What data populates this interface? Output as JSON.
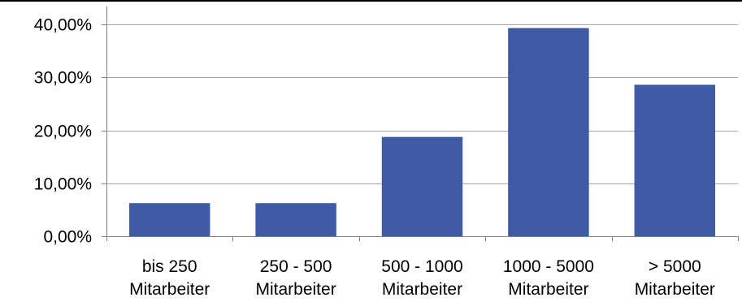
{
  "chart_data": {
    "type": "bar",
    "categories": [
      [
        "bis 250",
        "Mitarbeiter"
      ],
      [
        "250 - 500",
        "Mitarbeiter"
      ],
      [
        "500 - 1000",
        "Mitarbeiter"
      ],
      [
        "1000 - 5000",
        "Mitarbeiter"
      ],
      [
        "> 5000",
        "Mitarbeiter"
      ]
    ],
    "values": [
      6.25,
      6.25,
      18.75,
      39.3,
      28.6
    ],
    "title": "",
    "xlabel": "",
    "ylabel": "",
    "ylim": [
      0,
      40
    ],
    "yticks": [
      0,
      10,
      20,
      30,
      40
    ],
    "ytick_labels": [
      "0,00%",
      "10,00%",
      "20,00%",
      "30,00%",
      "40,00%"
    ],
    "grid": true,
    "legend": "none",
    "colors": {
      "bar": "#3F5AA6",
      "grid": "#A6A6A6",
      "axis": "#808080",
      "frame": "#000000"
    }
  }
}
